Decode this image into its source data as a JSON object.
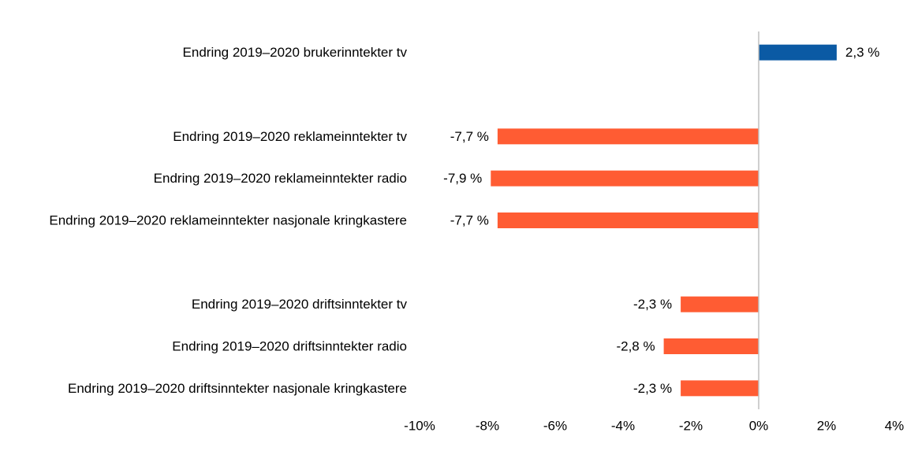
{
  "chart_data": {
    "type": "bar",
    "orientation": "horizontal",
    "title": "",
    "xlabel": "",
    "ylabel": "",
    "xlim": [
      -10,
      4
    ],
    "x_ticks": [
      {
        "value": -10,
        "label": "-10%"
      },
      {
        "value": -8,
        "label": "-8%"
      },
      {
        "value": -6,
        "label": "-6%"
      },
      {
        "value": -4,
        "label": "-4%"
      },
      {
        "value": -2,
        "label": "-2%"
      },
      {
        "value": 0,
        "label": "0%"
      },
      {
        "value": 2,
        "label": "2%"
      },
      {
        "value": 4,
        "label": "4%"
      }
    ],
    "grid": false,
    "legend": "none",
    "colors": {
      "positive": "#0B5AA4",
      "negative": "#FF5C33",
      "zero_line": "#BFBFBF"
    },
    "categories": [
      "Endring 2019–2020 brukerinntekter tv",
      "",
      "Endring 2019–2020 reklameinntekter tv",
      "Endring 2019–2020 reklameinntekter radio",
      "Endring 2019–2020 reklameinntekter nasjonale kringkastere",
      "",
      "Endring 2019–2020 driftsinntekter tv",
      "Endring 2019–2020 driftsinntekter radio",
      "Endring 2019–2020 driftsinntekter nasjonale kringkastere"
    ],
    "values": [
      2.3,
      null,
      -7.7,
      -7.9,
      -7.7,
      null,
      -2.3,
      -2.8,
      -2.3
    ],
    "data_labels": [
      "2,3 %",
      "",
      "-7,7 %",
      "-7,9 %",
      "-7,7 %",
      "",
      "-2,3 %",
      "-2,8 %",
      "-2,3 %"
    ]
  }
}
